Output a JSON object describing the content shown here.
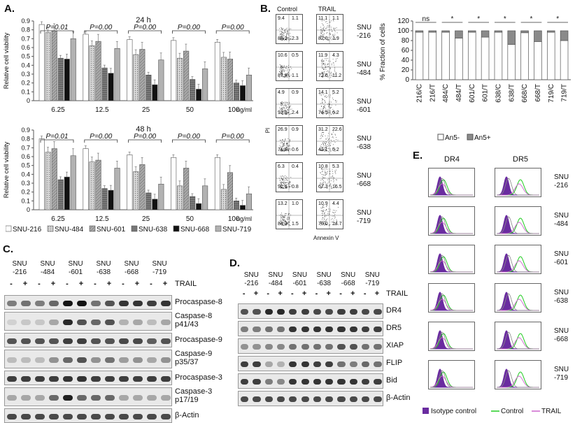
{
  "panels": {
    "a": "A.",
    "b": "B.",
    "c": "C.",
    "d": "D.",
    "e": "E."
  },
  "colors": {
    "snu216": "#ffffff",
    "snu484": "#c8c8c8",
    "snu601": "#9a9a9a",
    "snu638": "#767676",
    "snu668": "#111111",
    "snu719": "#b2b2b2",
    "isotype": "#6a2ca0",
    "control": "#22cc22",
    "trail": "#cc66cc"
  },
  "panel_a": {
    "ylabel": "Relative cell viability",
    "unit": "ng/ml",
    "legend": [
      "SNU-216",
      "SNU-484",
      "SNU-601",
      "SNU-638",
      "SNU-668",
      "SNU-719"
    ],
    "top": {
      "title": "24 h",
      "pvalues": [
        "P=0.01",
        "P=0.00",
        "P=0.00",
        "P=0.00",
        "P=0.00"
      ]
    },
    "bottom": {
      "title": "48 h",
      "pvalues": [
        "P=0.01",
        "P=0.00",
        "P=0.00",
        "P=0.00",
        "P=0.00"
      ]
    }
  },
  "chart_data": [
    {
      "type": "bar",
      "title": "24 h",
      "ylabel": "Relative cell viability",
      "ylim": [
        0,
        0.9
      ],
      "yticks": [
        "0",
        "0.1",
        "0.2",
        "0.3",
        "0.4",
        "0.5",
        "0.6",
        "0.7",
        "0.8",
        "0.9"
      ],
      "categories": [
        "6.25",
        "12.5",
        "25",
        "50",
        "100"
      ],
      "series": [
        {
          "name": "SNU-216",
          "values": [
            0.86,
            0.75,
            0.69,
            0.68,
            0.66
          ]
        },
        {
          "name": "SNU-484",
          "values": [
            0.77,
            0.62,
            0.52,
            0.48,
            0.49
          ]
        },
        {
          "name": "SNU-601",
          "values": [
            0.79,
            0.67,
            0.58,
            0.56,
            0.47
          ]
        },
        {
          "name": "SNU-638",
          "values": [
            0.48,
            0.37,
            0.29,
            0.24,
            0.2
          ]
        },
        {
          "name": "SNU-668",
          "values": [
            0.47,
            0.31,
            0.18,
            0.13,
            0.17
          ]
        },
        {
          "name": "SNU-719",
          "values": [
            0.7,
            0.59,
            0.46,
            0.36,
            0.29
          ]
        }
      ]
    },
    {
      "type": "bar",
      "title": "48 h",
      "ylabel": "Relative cell viability",
      "ylim": [
        0,
        0.9
      ],
      "yticks": [
        "0",
        "0.1",
        "0.2",
        "0.3",
        "0.4",
        "0.5",
        "0.6",
        "0.7",
        "0.8",
        "0.9"
      ],
      "categories": [
        "6.25",
        "12.5",
        "25",
        "50",
        "100"
      ],
      "series": [
        {
          "name": "SNU-216",
          "values": [
            0.8,
            0.69,
            0.62,
            0.59,
            0.59
          ]
        },
        {
          "name": "SNU-484",
          "values": [
            0.65,
            0.54,
            0.43,
            0.27,
            0.23
          ]
        },
        {
          "name": "SNU-601",
          "values": [
            0.69,
            0.56,
            0.51,
            0.47,
            0.42
          ]
        },
        {
          "name": "SNU-638",
          "values": [
            0.34,
            0.24,
            0.19,
            0.15,
            0.1
          ]
        },
        {
          "name": "SNU-668",
          "values": [
            0.37,
            0.22,
            0.12,
            0.07,
            0.05
          ]
        },
        {
          "name": "SNU-719",
          "values": [
            0.61,
            0.47,
            0.29,
            0.27,
            0.18
          ]
        }
      ]
    },
    {
      "type": "bar",
      "ylabel": "% Fraction of cells",
      "ylim": [
        0,
        120
      ],
      "yticks": [
        "0",
        "20",
        "40",
        "60",
        "80",
        "100",
        "120"
      ],
      "categories": [
        "216/C",
        "216/T",
        "484/C",
        "484/T",
        "601/C",
        "601/T",
        "638/C",
        "638/T",
        "668/C",
        "668/T",
        "719/C",
        "719/T"
      ],
      "series": [
        {
          "name": "An5-",
          "values": [
            97,
            97,
            97,
            85,
            97,
            87,
            97,
            72,
            96,
            78,
            97,
            80
          ]
        },
        {
          "name": "An5+",
          "values": [
            3,
            3,
            3,
            15,
            3,
            13,
            3,
            28,
            4,
            22,
            3,
            20
          ]
        }
      ],
      "sig": [
        "ns",
        "*",
        "*",
        "*",
        "*",
        "*"
      ],
      "legend": [
        "An5-",
        "An5+"
      ]
    }
  ],
  "panel_b": {
    "col_control": "Control",
    "col_trail": "TRAIL",
    "xlabel": "Annexin V",
    "ylabel": "PI",
    "rows": [
      {
        "label": "SNU\n-216",
        "c": [
          "9.4",
          "1.1",
          "88.2",
          "2.3"
        ],
        "t": [
          "11.1",
          "1.1",
          "82.0",
          "1.9"
        ]
      },
      {
        "label": "SNU\n-484",
        "c": [
          "10.6",
          "0.5",
          "87.8",
          "1.1"
        ],
        "t": [
          "11.9",
          "4.3",
          "72.6",
          "11.2"
        ]
      },
      {
        "label": "SNU\n-601",
        "c": [
          "4.9",
          "0.9",
          "91.8",
          "2.4"
        ],
        "t": [
          "14.1",
          "5.2",
          "74.5",
          "6.2"
        ]
      },
      {
        "label": "SNU\n-638",
        "c": [
          "26.9",
          "0.9",
          "71.6",
          "0.6"
        ],
        "t": [
          "31.2",
          "22.6",
          "41.1",
          "5.2"
        ]
      },
      {
        "label": "SNU\n-668",
        "c": [
          "6.3",
          "0.4",
          "92.6",
          "0.8"
        ],
        "t": [
          "10.8",
          "5.3",
          "67.3",
          "16.5"
        ]
      },
      {
        "label": "SNU\n-719",
        "c": [
          "13.2",
          "1.0",
          "84.3",
          "1.5"
        ],
        "t": [
          "10.9",
          "4.4",
          "70.0",
          "14.7"
        ]
      }
    ]
  },
  "panel_c": {
    "cells": [
      "SNU\n-216",
      "SNU\n-484",
      "SNU\n-601",
      "SNU\n-638",
      "SNU\n-668",
      "SNU\n-719"
    ],
    "signs": [
      "-",
      "+",
      "-",
      "+",
      "-",
      "+",
      "-",
      "+",
      "-",
      "+",
      "-",
      "+"
    ],
    "trail": "TRAIL",
    "rows": [
      {
        "label": "Procaspase-8",
        "b": [
          0.5,
          0.55,
          0.5,
          0.6,
          1,
          1,
          0.55,
          0.7,
          0.85,
          0.85,
          0.8,
          0.85
        ]
      },
      {
        "label": "Caspase-8\np41/43",
        "b": [
          0.1,
          0.15,
          0.15,
          0.3,
          0.9,
          0.7,
          0.6,
          0.7,
          0.25,
          0.3,
          0.2,
          0.3
        ]
      },
      {
        "label": "Procaspase-9",
        "b": [
          0.7,
          0.7,
          0.7,
          0.7,
          0.8,
          0.8,
          0.7,
          0.7,
          0.75,
          0.75,
          0.65,
          0.7
        ]
      },
      {
        "label": "Caspase-9\np35/37",
        "b": [
          0.2,
          0.2,
          0.2,
          0.4,
          0.6,
          0.7,
          0.4,
          0.55,
          0.35,
          0.4,
          0.3,
          0.4
        ]
      },
      {
        "label": "Procaspase-3",
        "b": [
          0.8,
          0.8,
          0.8,
          0.8,
          0.85,
          0.85,
          0.8,
          0.8,
          0.8,
          0.8,
          0.8,
          0.8
        ]
      },
      {
        "label": "Caspase-3\np17/19",
        "b": [
          0.3,
          0.3,
          0.3,
          0.6,
          0.95,
          0.6,
          0.6,
          0.6,
          0.3,
          0.3,
          0.3,
          0.3
        ]
      },
      {
        "label": "β-Actin",
        "b": [
          0.75,
          0.75,
          0.75,
          0.75,
          0.75,
          0.75,
          0.75,
          0.75,
          0.75,
          0.75,
          0.75,
          0.75
        ]
      }
    ]
  },
  "panel_d": {
    "cells": [
      "SNU\n-216",
      "SNU\n-484",
      "SNU\n-601",
      "SNU\n-638",
      "SNU\n-668",
      "SNU\n-719"
    ],
    "signs": [
      "-",
      "+",
      "-",
      "+",
      "-",
      "+",
      "-",
      "+",
      "-",
      "+",
      "-",
      "+"
    ],
    "trail": "TRAIL",
    "rows": [
      {
        "label": "DR4",
        "b": [
          0.7,
          0.7,
          0.9,
          0.9,
          0.8,
          0.8,
          0.75,
          0.75,
          0.8,
          0.8,
          0.75,
          0.75
        ]
      },
      {
        "label": "DR5",
        "b": [
          0.5,
          0.5,
          0.55,
          0.55,
          0.85,
          0.85,
          0.85,
          0.85,
          0.85,
          0.85,
          0.8,
          0.8
        ]
      },
      {
        "label": "XIAP",
        "b": [
          0.4,
          0.4,
          0.45,
          0.45,
          0.55,
          0.55,
          0.55,
          0.55,
          0.7,
          0.7,
          0.55,
          0.55
        ]
      },
      {
        "label": "FLIP",
        "b": [
          0.8,
          0.8,
          0.3,
          0.25,
          0.85,
          0.85,
          0.8,
          0.8,
          0.55,
          0.5,
          0.6,
          0.55
        ]
      },
      {
        "label": "Bid",
        "b": [
          0.8,
          0.8,
          0.5,
          0.45,
          0.85,
          0.85,
          0.85,
          0.85,
          0.85,
          0.85,
          0.8,
          0.8
        ]
      },
      {
        "label": "β-Actin",
        "b": [
          0.75,
          0.75,
          0.75,
          0.75,
          0.75,
          0.75,
          0.75,
          0.75,
          0.75,
          0.75,
          0.75,
          0.75
        ]
      }
    ]
  },
  "panel_e": {
    "col_dr4": "DR4",
    "col_dr5": "DR5",
    "rows": [
      "SNU\n-216",
      "SNU\n-484",
      "SNU\n-601",
      "SNU\n-638",
      "SNU\n-668",
      "SNU\n-719"
    ],
    "legend": [
      "Isotype control",
      "Control",
      "TRAIL"
    ]
  }
}
